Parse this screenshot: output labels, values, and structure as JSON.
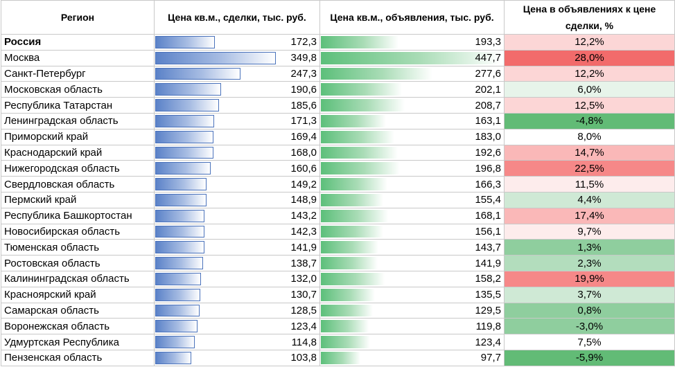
{
  "headers": {
    "region": "Регион",
    "deal_price": "Цена кв.м., сделки, тыс. руб.",
    "ad_price": "Цена кв.м., объявления, тыс. руб.",
    "ratio": "Цена в объявлениях к цене сделки, %"
  },
  "colors": {
    "deal_bar": "#5b82c8",
    "ad_bar": "#5cbf7a",
    "positive_scale": [
      "#fdecec",
      "#fcd6d6",
      "#fab8b8",
      "#f68888",
      "#f26b6b"
    ],
    "negative_scale": [
      "#e7f4ea",
      "#cfe9d5",
      "#b3ddbd",
      "#8fce9e",
      "#62bb76"
    ]
  },
  "scale_max": {
    "deal": 349.8,
    "ad": 447.7
  },
  "rows": [
    {
      "region": "Россия",
      "deal": "172,3",
      "deal_num": 172.3,
      "ad": "193,3",
      "ad_num": 193.3,
      "ratio": "12,2%",
      "ratio_num": 12.2,
      "bold": true
    },
    {
      "region": "Москва",
      "deal": "349,8",
      "deal_num": 349.8,
      "ad": "447,7",
      "ad_num": 447.7,
      "ratio": "28,0%",
      "ratio_num": 28.0
    },
    {
      "region": "Санкт-Петербург",
      "deal": "247,3",
      "deal_num": 247.3,
      "ad": "277,6",
      "ad_num": 277.6,
      "ratio": "12,2%",
      "ratio_num": 12.2
    },
    {
      "region": "Московская область",
      "deal": "190,6",
      "deal_num": 190.6,
      "ad": "202,1",
      "ad_num": 202.1,
      "ratio": "6,0%",
      "ratio_num": 6.0
    },
    {
      "region": "Республика Татарстан",
      "deal": "185,6",
      "deal_num": 185.6,
      "ad": "208,7",
      "ad_num": 208.7,
      "ratio": "12,5%",
      "ratio_num": 12.5
    },
    {
      "region": "Ленинградская область",
      "deal": "171,3",
      "deal_num": 171.3,
      "ad": "163,1",
      "ad_num": 163.1,
      "ratio": "-4,8%",
      "ratio_num": -4.8
    },
    {
      "region": "Приморский край",
      "deal": "169,4",
      "deal_num": 169.4,
      "ad": "183,0",
      "ad_num": 183.0,
      "ratio": "8,0%",
      "ratio_num": 8.0
    },
    {
      "region": "Краснодарский край",
      "deal": "168,0",
      "deal_num": 168.0,
      "ad": "192,6",
      "ad_num": 192.6,
      "ratio": "14,7%",
      "ratio_num": 14.7
    },
    {
      "region": "Нижегородская область",
      "deal": "160,6",
      "deal_num": 160.6,
      "ad": "196,8",
      "ad_num": 196.8,
      "ratio": "22,5%",
      "ratio_num": 22.5
    },
    {
      "region": "Свердловская область",
      "deal": "149,2",
      "deal_num": 149.2,
      "ad": "166,3",
      "ad_num": 166.3,
      "ratio": "11,5%",
      "ratio_num": 11.5
    },
    {
      "region": "Пермский край",
      "deal": "148,9",
      "deal_num": 148.9,
      "ad": "155,4",
      "ad_num": 155.4,
      "ratio": "4,4%",
      "ratio_num": 4.4
    },
    {
      "region": "Республика Башкортостан",
      "deal": "143,2",
      "deal_num": 143.2,
      "ad": "168,1",
      "ad_num": 168.1,
      "ratio": "17,4%",
      "ratio_num": 17.4
    },
    {
      "region": "Новосибирская область",
      "deal": "142,3",
      "deal_num": 142.3,
      "ad": "156,1",
      "ad_num": 156.1,
      "ratio": "9,7%",
      "ratio_num": 9.7
    },
    {
      "region": "Тюменская область",
      "deal": "141,9",
      "deal_num": 141.9,
      "ad": "143,7",
      "ad_num": 143.7,
      "ratio": "1,3%",
      "ratio_num": 1.3
    },
    {
      "region": "Ростовская область",
      "deal": "138,7",
      "deal_num": 138.7,
      "ad": "141,9",
      "ad_num": 141.9,
      "ratio": "2,3%",
      "ratio_num": 2.3
    },
    {
      "region": "Калининградская область",
      "deal": "132,0",
      "deal_num": 132.0,
      "ad": "158,2",
      "ad_num": 158.2,
      "ratio": "19,9%",
      "ratio_num": 19.9
    },
    {
      "region": "Красноярский край",
      "deal": "130,7",
      "deal_num": 130.7,
      "ad": "135,5",
      "ad_num": 135.5,
      "ratio": "3,7%",
      "ratio_num": 3.7
    },
    {
      "region": "Самарская область",
      "deal": "128,5",
      "deal_num": 128.5,
      "ad": "129,5",
      "ad_num": 129.5,
      "ratio": "0,8%",
      "ratio_num": 0.8
    },
    {
      "region": "Воронежская область",
      "deal": "123,4",
      "deal_num": 123.4,
      "ad": "119,8",
      "ad_num": 119.8,
      "ratio": "-3,0%",
      "ratio_num": -3.0
    },
    {
      "region": "Удмуртская Республика",
      "deal": "114,8",
      "deal_num": 114.8,
      "ad": "123,4",
      "ad_num": 123.4,
      "ratio": "7,5%",
      "ratio_num": 7.5
    },
    {
      "region": "Пензенская область",
      "deal": "103,8",
      "deal_num": 103.8,
      "ad": "97,7",
      "ad_num": 97.7,
      "ratio": "-5,9%",
      "ratio_num": -5.9
    }
  ]
}
